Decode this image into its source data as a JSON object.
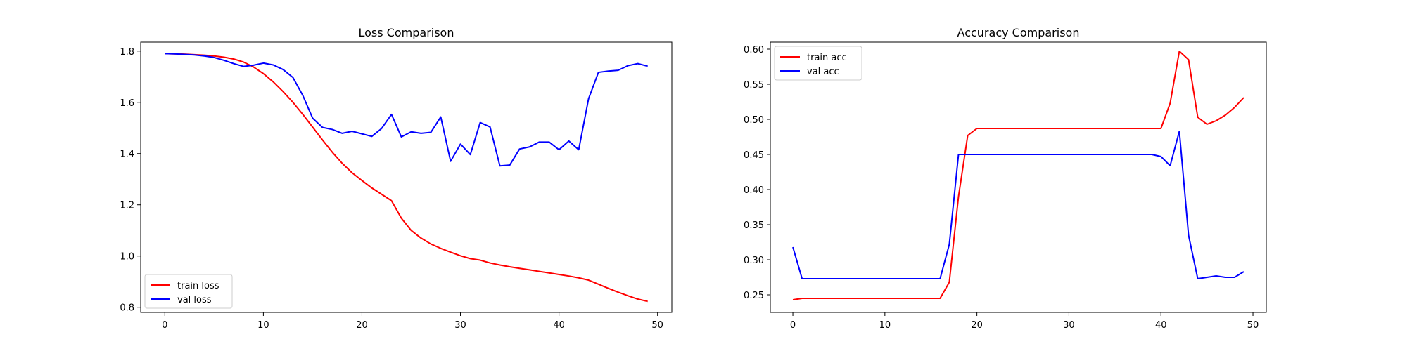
{
  "chart_data": [
    {
      "type": "line",
      "title": "Loss Comparison",
      "xlabel": "",
      "ylabel": "",
      "xlim": [
        -2.45,
        51.45
      ],
      "ylim": [
        0.78,
        1.835
      ],
      "xticks": [
        0,
        10,
        20,
        30,
        40,
        50
      ],
      "yticks": [
        0.8,
        1.0,
        1.2,
        1.4,
        1.6,
        1.8
      ],
      "ytick_format": 1,
      "grid": false,
      "legend_position": "lower-left",
      "series": [
        {
          "name": "train loss",
          "color": "#ff0000",
          "x": [
            0,
            1,
            2,
            3,
            4,
            5,
            6,
            7,
            8,
            9,
            10,
            11,
            12,
            13,
            14,
            15,
            16,
            17,
            18,
            19,
            20,
            21,
            22,
            23,
            24,
            25,
            26,
            27,
            28,
            29,
            30,
            31,
            32,
            33,
            34,
            35,
            36,
            37,
            38,
            39,
            40,
            41,
            42,
            43,
            44,
            45,
            46,
            47,
            48,
            49
          ],
          "y": [
            1.79,
            1.789,
            1.788,
            1.786,
            1.784,
            1.781,
            1.776,
            1.769,
            1.757,
            1.738,
            1.712,
            1.68,
            1.642,
            1.6,
            1.553,
            1.503,
            1.453,
            1.405,
            1.362,
            1.325,
            1.295,
            1.266,
            1.241,
            1.216,
            1.148,
            1.1,
            1.07,
            1.047,
            1.03,
            1.015,
            1.001,
            0.99,
            0.984,
            0.973,
            0.965,
            0.958,
            0.952,
            0.946,
            0.94,
            0.934,
            0.928,
            0.922,
            0.915,
            0.906,
            0.89,
            0.874,
            0.859,
            0.845,
            0.832,
            0.823
          ]
        },
        {
          "name": "val loss",
          "color": "#0000ff",
          "x": [
            0,
            1,
            2,
            3,
            4,
            5,
            6,
            7,
            8,
            9,
            10,
            11,
            12,
            13,
            14,
            15,
            16,
            17,
            18,
            19,
            20,
            21,
            22,
            23,
            24,
            25,
            26,
            27,
            28,
            29,
            30,
            31,
            32,
            33,
            34,
            35,
            36,
            37,
            38,
            39,
            40,
            41,
            42,
            43,
            44,
            45,
            46,
            47,
            48,
            49
          ],
          "y": [
            1.79,
            1.789,
            1.787,
            1.785,
            1.781,
            1.775,
            1.764,
            1.751,
            1.74,
            1.745,
            1.753,
            1.746,
            1.728,
            1.697,
            1.627,
            1.538,
            1.502,
            1.494,
            1.479,
            1.487,
            1.477,
            1.467,
            1.498,
            1.553,
            1.465,
            1.485,
            1.479,
            1.483,
            1.543,
            1.37,
            1.437,
            1.396,
            1.521,
            1.504,
            1.352,
            1.355,
            1.418,
            1.426,
            1.445,
            1.445,
            1.415,
            1.449,
            1.415,
            1.614,
            1.717,
            1.722,
            1.725,
            1.743,
            1.751,
            1.741
          ]
        }
      ]
    },
    {
      "type": "line",
      "title": "Accuracy Comparison",
      "xlabel": "",
      "ylabel": "",
      "xlim": [
        -2.45,
        51.45
      ],
      "ylim": [
        0.225,
        0.61
      ],
      "xticks": [
        0,
        10,
        20,
        30,
        40,
        50
      ],
      "yticks": [
        0.25,
        0.3,
        0.35,
        0.4,
        0.45,
        0.5,
        0.55,
        0.6
      ],
      "ytick_format": 2,
      "grid": false,
      "legend_position": "upper-left",
      "series": [
        {
          "name": "train acc",
          "color": "#ff0000",
          "x": [
            0,
            1,
            2,
            3,
            4,
            5,
            6,
            7,
            8,
            9,
            10,
            11,
            12,
            13,
            14,
            15,
            16,
            17,
            18,
            19,
            20,
            21,
            22,
            23,
            24,
            25,
            26,
            27,
            28,
            29,
            30,
            31,
            32,
            33,
            34,
            35,
            36,
            37,
            38,
            39,
            40,
            41,
            42,
            43,
            44,
            45,
            46,
            47,
            48,
            49
          ],
          "y": [
            0.243,
            0.245,
            0.245,
            0.245,
            0.245,
            0.245,
            0.245,
            0.245,
            0.245,
            0.245,
            0.245,
            0.245,
            0.245,
            0.245,
            0.245,
            0.245,
            0.245,
            0.268,
            0.39,
            0.477,
            0.487,
            0.487,
            0.487,
            0.487,
            0.487,
            0.487,
            0.487,
            0.487,
            0.487,
            0.487,
            0.487,
            0.487,
            0.487,
            0.487,
            0.487,
            0.487,
            0.487,
            0.487,
            0.487,
            0.487,
            0.487,
            0.523,
            0.597,
            0.585,
            0.503,
            0.493,
            0.498,
            0.506,
            0.517,
            0.531
          ]
        },
        {
          "name": "val acc",
          "color": "#0000ff",
          "x": [
            0,
            1,
            2,
            3,
            4,
            5,
            6,
            7,
            8,
            9,
            10,
            11,
            12,
            13,
            14,
            15,
            16,
            17,
            18,
            19,
            20,
            21,
            22,
            23,
            24,
            25,
            26,
            27,
            28,
            29,
            30,
            31,
            32,
            33,
            34,
            35,
            36,
            37,
            38,
            39,
            40,
            41,
            42,
            43,
            44,
            45,
            46,
            47,
            48,
            49
          ],
          "y": [
            0.318,
            0.273,
            0.273,
            0.273,
            0.273,
            0.273,
            0.273,
            0.273,
            0.273,
            0.273,
            0.273,
            0.273,
            0.273,
            0.273,
            0.273,
            0.273,
            0.273,
            0.322,
            0.45,
            0.45,
            0.45,
            0.45,
            0.45,
            0.45,
            0.45,
            0.45,
            0.45,
            0.45,
            0.45,
            0.45,
            0.45,
            0.45,
            0.45,
            0.45,
            0.45,
            0.45,
            0.45,
            0.45,
            0.45,
            0.45,
            0.447,
            0.434,
            0.483,
            0.335,
            0.273,
            0.275,
            0.277,
            0.275,
            0.275,
            0.283
          ]
        }
      ]
    }
  ]
}
